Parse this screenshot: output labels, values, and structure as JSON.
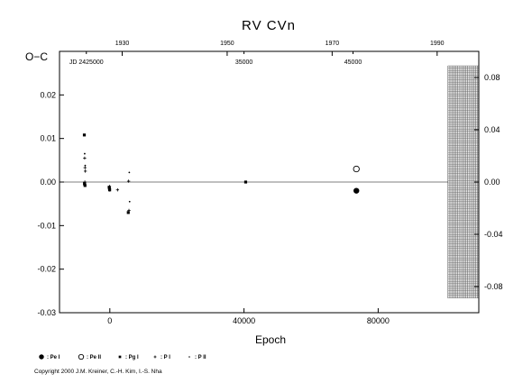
{
  "chart_data": {
    "type": "scatter",
    "title": "RV  CVn",
    "xlabel": "Epoch",
    "ylabel": "O−C",
    "xlim": [
      -15000,
      110000
    ],
    "ylim": [
      -0.03,
      0.03
    ],
    "x_ticks": [
      {
        "value": 0,
        "label": "0"
      },
      {
        "value": 40000,
        "label": "40000"
      },
      {
        "value": 80000,
        "label": "80000"
      }
    ],
    "y_ticks": [
      {
        "value": -0.03,
        "label": "-0.03"
      },
      {
        "value": -0.02,
        "label": "-0.02"
      },
      {
        "value": -0.01,
        "label": "-0.01"
      },
      {
        "value": 0.0,
        "label": "0.00"
      },
      {
        "value": 0.01,
        "label": "0.01"
      },
      {
        "value": 0.02,
        "label": "0.02"
      }
    ],
    "y2_ticks": [
      {
        "value": -0.08,
        "label": "-0.08"
      },
      {
        "value": -0.04,
        "label": "-0.04"
      },
      {
        "value": 0.0,
        "label": "0.00"
      },
      {
        "value": 0.04,
        "label": "0.04"
      },
      {
        "value": 0.08,
        "label": "0.08"
      }
    ],
    "y2lim": [
      -0.1,
      0.1
    ],
    "top_ticks": [
      {
        "x": 3680,
        "label": "1930"
      },
      {
        "x": 34980,
        "label": "1950"
      },
      {
        "x": 66280,
        "label": "1970"
      },
      {
        "x": 97580,
        "label": "1990"
      }
    ],
    "jd_labels": [
      {
        "x": -7000,
        "label": "JD 2425000"
      },
      {
        "x": 40000,
        "label": "35000"
      },
      {
        "x": 72500,
        "label": "45000"
      }
    ],
    "shaded_region": {
      "x_from": 100800,
      "x_to": 110000
    },
    "series": [
      {
        "name": ": Pe I",
        "marker": "filled-circle",
        "points": [
          {
            "x": 73500,
            "y": -0.002
          }
        ]
      },
      {
        "name": ": Pe II",
        "marker": "open-circle",
        "points": [
          {
            "x": 73500,
            "y": 0.003
          }
        ]
      },
      {
        "name": ": Pg I",
        "marker": "filled-square",
        "points": [
          {
            "x": -7600,
            "y": 0.0108
          },
          {
            "x": -7500,
            "y": -0.0005
          },
          {
            "x": -7400,
            "y": -0.0008
          },
          {
            "x": -7550,
            "y": -0.0003
          },
          {
            "x": -200,
            "y": -0.0012
          },
          {
            "x": -100,
            "y": -0.0015
          },
          {
            "x": -50,
            "y": -0.0018
          },
          {
            "x": 5500,
            "y": -0.007
          },
          {
            "x": 40500,
            "y": 0.0
          }
        ]
      },
      {
        "name": ": P I",
        "marker": "plus",
        "points": [
          {
            "x": -7500,
            "y": 0.0055
          },
          {
            "x": -7400,
            "y": 0.0033
          },
          {
            "x": -7300,
            "y": 0.0025
          },
          {
            "x": -7450,
            "y": 0.0
          },
          {
            "x": -100,
            "y": -0.001
          },
          {
            "x": 2300,
            "y": -0.0018
          },
          {
            "x": 5600,
            "y": 0.0002
          },
          {
            "x": 5700,
            "y": -0.0065
          }
        ]
      },
      {
        "name": ": P II",
        "marker": "dot",
        "points": [
          {
            "x": -7500,
            "y": 0.0065
          },
          {
            "x": -7350,
            "y": 0.0038
          },
          {
            "x": 5800,
            "y": 0.0022
          },
          {
            "x": 5900,
            "y": -0.0045
          },
          {
            "x": -20,
            "y": -0.002
          }
        ]
      }
    ],
    "copyright": "Copyright 2000 J.M. Kreiner, C.-H. Kim, I.-S. Nha"
  }
}
